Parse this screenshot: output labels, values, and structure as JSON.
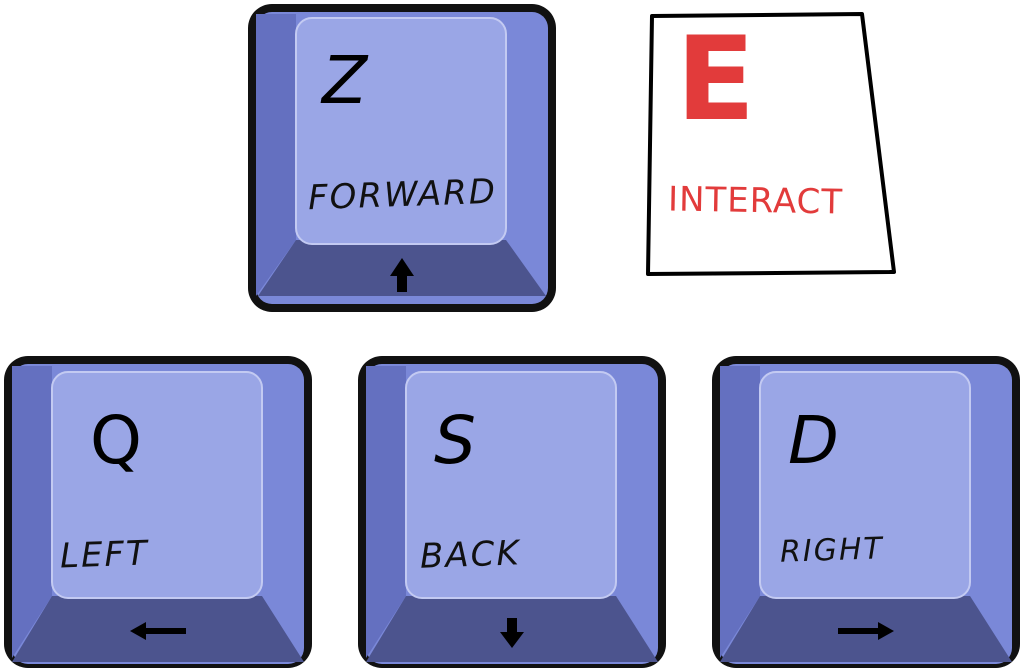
{
  "colors": {
    "key_face": "#7a88d8",
    "key_top": "#9aa6e6",
    "key_front": "#4c548e",
    "key_border": "#111111",
    "interact_ink": "#e23b3b"
  },
  "keys": {
    "forward": {
      "letter": "Z",
      "action": "FORWARD",
      "arrow_icon": "arrow-up-icon"
    },
    "left": {
      "letter": "Q",
      "action": "LEFT",
      "arrow_icon": "arrow-left-icon"
    },
    "back": {
      "letter": "S",
      "action": "BACK",
      "arrow_icon": "arrow-down-icon"
    },
    "right": {
      "letter": "D",
      "action": "RIGHT",
      "arrow_icon": "arrow-right-icon"
    }
  },
  "interact": {
    "letter": "E",
    "label": "INTERACT"
  }
}
